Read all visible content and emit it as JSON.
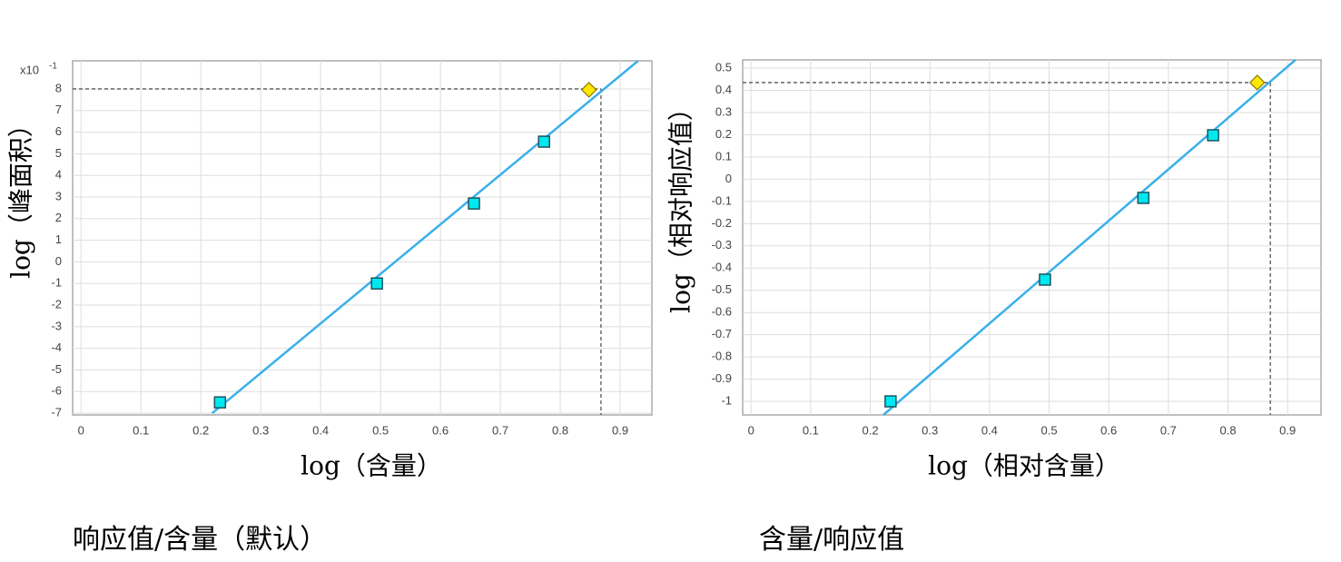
{
  "chart_data": [
    {
      "type": "scatter",
      "axis_multiplier_base": "x10",
      "axis_multiplier_exponent": "-1",
      "x_label": "log（含量）",
      "y_label": "log（峰面积）",
      "caption": "响应值/含量（默认）",
      "x": [
        0.232,
        0.494,
        0.656,
        0.773
      ],
      "values": [
        -6.5,
        -1.0,
        2.7,
        5.56
      ],
      "color": "#00e8f0",
      "target": {
        "x": 0.848,
        "value": 7.96,
        "color": "#ffe800"
      },
      "fit_line": {
        "x": [
          0.219,
          0.93
        ],
        "values": [
          -7,
          9.3
        ],
        "color": "#3ab0ea"
      },
      "guide": {
        "x": 0.868,
        "value": 8
      },
      "xlim": [
        -0.014,
        0.953
      ],
      "ylim": [
        -7.08,
        9.3
      ],
      "xticks": [
        0,
        0.1,
        0.2,
        0.3,
        0.4,
        0.5,
        0.6,
        0.7,
        0.8,
        0.9
      ],
      "yticks": [
        -7,
        -6,
        -5,
        -4,
        -3,
        -2,
        -1,
        0,
        1,
        2,
        3,
        4,
        5,
        6,
        7,
        8
      ],
      "grid": true
    },
    {
      "type": "scatter",
      "x_label": "log（相对含量）",
      "y_label": "log（相对响应值）",
      "caption": "含量/响应值",
      "x": [
        0.234,
        0.493,
        0.658,
        0.775
      ],
      "values": [
        -1.0,
        -0.452,
        -0.084,
        0.198
      ],
      "color": "#00e8f0",
      "target": {
        "x": 0.849,
        "value": 0.435,
        "color": "#ffe800"
      },
      "fit_line": {
        "x": [
          0.222,
          0.913
        ],
        "values": [
          -1.061,
          0.537
        ],
        "color": "#3ab0ea"
      },
      "guide": {
        "x": 0.871,
        "value": 0.435
      },
      "xlim": [
        -0.014,
        0.956
      ],
      "ylim": [
        -1.061,
        0.537
      ],
      "xticks": [
        0,
        0.1,
        0.2,
        0.3,
        0.4,
        0.5,
        0.6,
        0.7,
        0.8,
        0.9
      ],
      "yticks": [
        -1,
        -0.9,
        -0.8,
        -0.7,
        -0.6,
        -0.5,
        -0.4,
        -0.3,
        -0.2,
        -0.1,
        0,
        0.1,
        0.2,
        0.3,
        0.4,
        0.5
      ],
      "grid": true
    }
  ]
}
